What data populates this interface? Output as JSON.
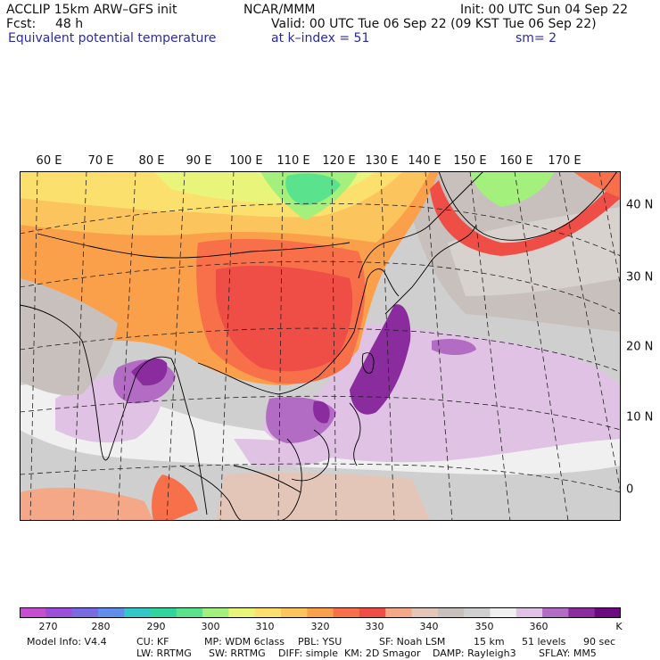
{
  "header": {
    "line1_left": "ACCLIP 15km ARW–GFS init",
    "line1_center": "NCAR/MMM",
    "line1_right": "Init: 00 UTC Sun 04 Sep 22",
    "fcst_label": "Fcst:",
    "fcst_value": "48 h",
    "valid": "Valid: 00 UTC Tue 06 Sep 22 (09 KST Tue 06 Sep 22)",
    "field": "Equivalent potential temperature",
    "level": "at k–index =  51",
    "smooth": "sm= 2"
  },
  "map": {
    "lon_labels": [
      "60 E",
      "70 E",
      "80 E",
      "90 E",
      "100 E",
      "110 E",
      "120 E",
      "130 E",
      "140 E",
      "150 E",
      "160 E",
      "170 E"
    ],
    "lat_labels": [
      "40 N",
      "30 N",
      "20 N",
      "10 N",
      "0"
    ]
  },
  "colorbar": {
    "colors": [
      "#c64fd1",
      "#9b4fd6",
      "#7a6be0",
      "#5f8fe8",
      "#35c6c8",
      "#2fd59c",
      "#5ae28c",
      "#a4f07c",
      "#e9f57a",
      "#fbe06e",
      "#fcc45c",
      "#fba04a",
      "#f7704a",
      "#ef4e46",
      "#f4a888",
      "#e3c6b8",
      "#c8c0bc",
      "#cfcfcf",
      "#f0f0f0",
      "#e0c2e4",
      "#b36cc4",
      "#8a2b9e",
      "#6a0a7e"
    ],
    "tick_labels": [
      "270",
      "280",
      "290",
      "300",
      "310",
      "320",
      "330",
      "340",
      "350",
      "360"
    ],
    "unit": "K"
  },
  "footer": {
    "line1": [
      "Model Info: V4.4",
      "CU: KF",
      "MP: WDM 6class",
      "PBL: YSU",
      "SF: Noah LSM",
      "15 km",
      "51 levels",
      "90 sec"
    ],
    "line2": [
      "LW: RRTMG",
      "SW: RRTMG",
      "DIFF: simple",
      "KM: 2D Smagor",
      "DAMP: Rayleigh3",
      "SFLAY: MM5"
    ]
  }
}
